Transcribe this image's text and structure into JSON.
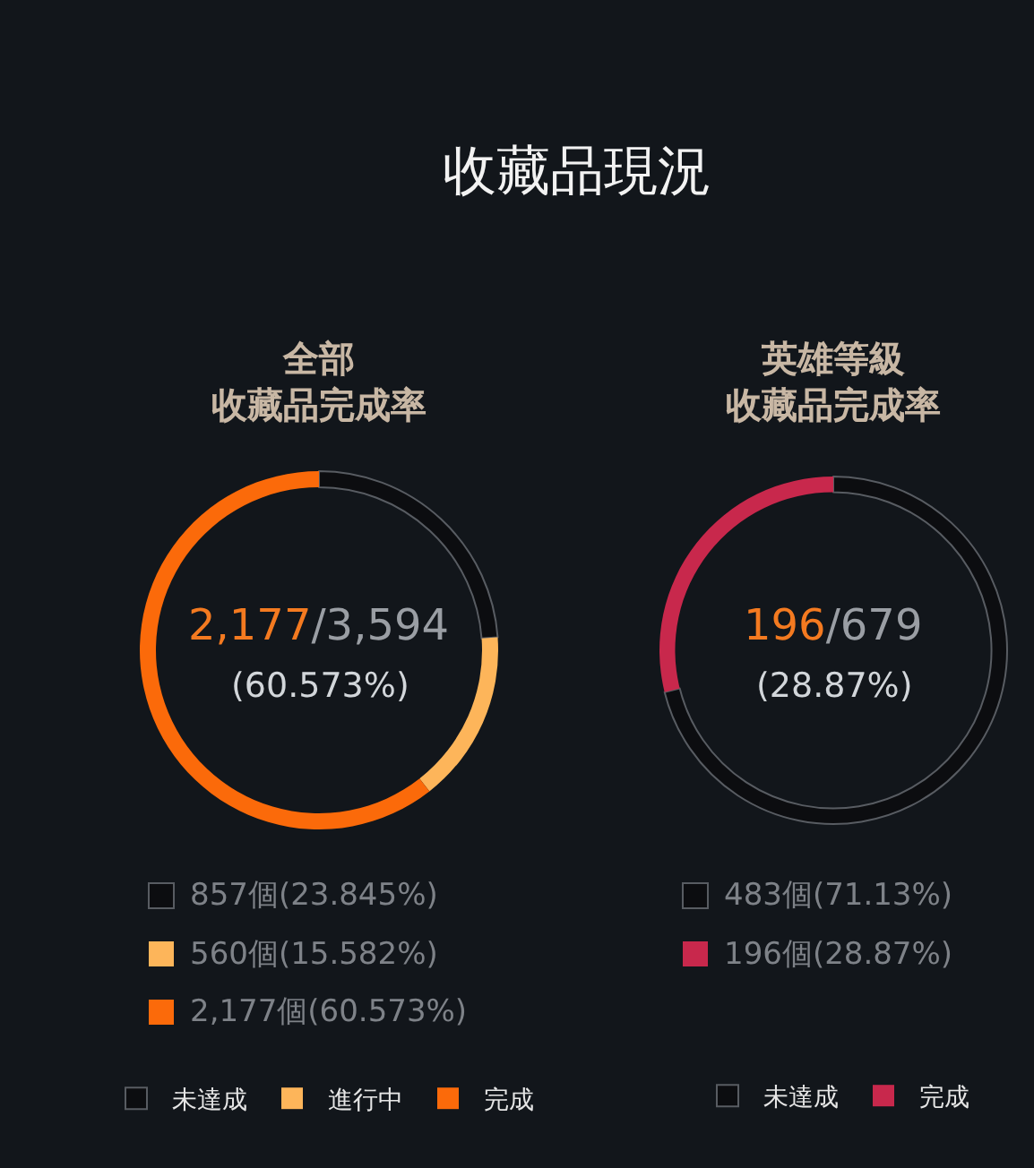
{
  "chart_data": [
    {
      "type": "donut",
      "title": "收藏品現況",
      "subtitle": "全部收藏品完成率",
      "categories": [
        "未達成",
        "進行中",
        "完成"
      ],
      "values": [
        23.845,
        15.582,
        60.573
      ],
      "colors": [
        "#0c0d10",
        "#fdb55a",
        "#fb6a0a"
      ],
      "annotations": [
        "2,177/3,594",
        "(60.573%)",
        "857個(23.845%)",
        "560個(15.582%)",
        "2,177個(60.573%)"
      ],
      "legend": "bottom"
    },
    {
      "type": "donut",
      "subtitle": "英雄等級收藏品完成率",
      "categories": [
        "未達成",
        "完成"
      ],
      "values": [
        71.13,
        28.87
      ],
      "colors": [
        "#0c0d10",
        "#c8284c"
      ],
      "annotations": [
        "196/679",
        "(28.87%)",
        "483個(71.13%)",
        "196個(28.87%)"
      ],
      "legend": "bottom"
    }
  ]
}
